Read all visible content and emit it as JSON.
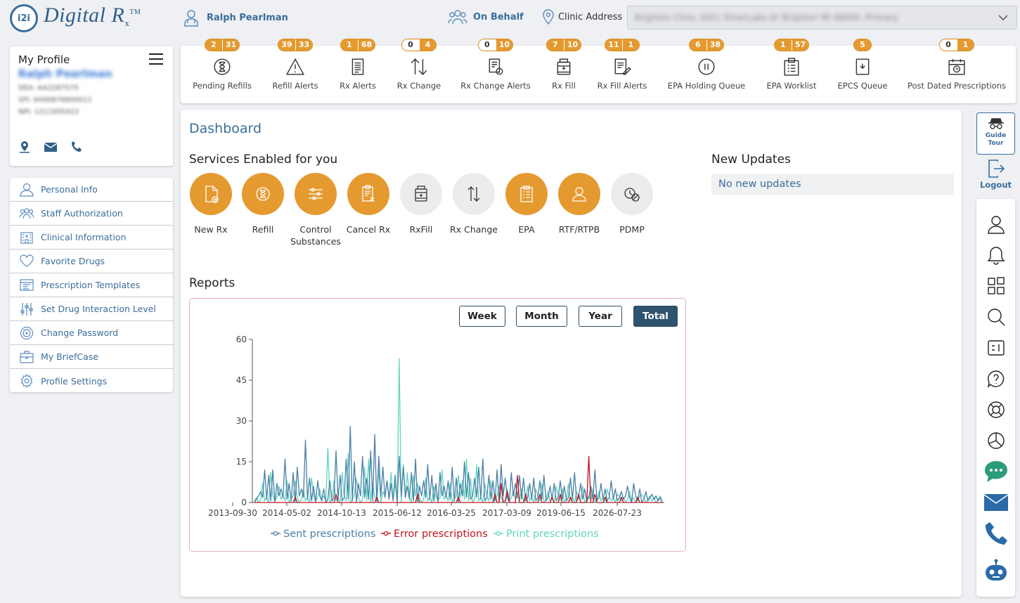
{
  "header": {
    "logo_mark": "i2i",
    "logo_text": "Digital R",
    "logo_sub": "x",
    "logo_tm": "TM",
    "user_name": "Ralph Pearlman",
    "on_behalf_label": "On Behalf",
    "clinic_label": "Clinic Address",
    "clinic_value": "Brighton Clinic 3451 SilverLake Dr Brighton MI 48000 -Primary"
  },
  "profile": {
    "title": "My Profile",
    "name": "Ralph Pearlman",
    "dea": "DEA: AA2287575",
    "spi": "SPI: 6490876800012",
    "npi": "NPI: 1211955422"
  },
  "menu": [
    {
      "label": "Personal Info",
      "icon": "user-icon"
    },
    {
      "label": "Staff Authorization",
      "icon": "staff-icon"
    },
    {
      "label": "Clinical Information",
      "icon": "hospital-icon"
    },
    {
      "label": "Favorite Drugs",
      "icon": "heart-icon"
    },
    {
      "label": "Prescription Templates",
      "icon": "template-icon"
    },
    {
      "label": "Set Drug Interaction Level",
      "icon": "sliders-icon"
    },
    {
      "label": "Change Password",
      "icon": "password-icon"
    },
    {
      "label": "My BriefCase",
      "icon": "briefcase-icon"
    },
    {
      "label": "Profile Settings",
      "icon": "settings-gear-icon"
    }
  ],
  "toolbar": [
    {
      "label": "Pending Refills",
      "badges": [
        "2",
        "31"
      ],
      "icon": "hourglass-icon"
    },
    {
      "label": "Refill Alerts",
      "badges": [
        "39",
        "33"
      ],
      "icon": "warning-icon"
    },
    {
      "label": "Rx Alerts",
      "badges": [
        "1",
        "68"
      ],
      "icon": "document-icon"
    },
    {
      "label": "Rx Change",
      "badges": [
        "0",
        "4"
      ],
      "icon": "swap-arrows-icon"
    },
    {
      "label": "Rx Change Alerts",
      "badges": [
        "0",
        "10"
      ],
      "icon": "document-alert-icon"
    },
    {
      "label": "Rx Fill",
      "badges": [
        "7",
        "10"
      ],
      "icon": "pill-bottle-icon"
    },
    {
      "label": "Rx Fill Alerts",
      "badges": [
        "11",
        "1"
      ],
      "icon": "edit-document-icon"
    },
    {
      "label": "EPA Holding Queue",
      "badges": [
        "6",
        "38"
      ],
      "icon": "pause-icon"
    },
    {
      "label": "EPA Worklist",
      "badges": [
        "1",
        "57"
      ],
      "icon": "clipboard-list-icon"
    },
    {
      "label": "EPCS Queue",
      "badges": [
        "5"
      ],
      "icon": "tablet-icon"
    },
    {
      "label": "Post Dated Prescriptions",
      "badges": [
        "0",
        "1"
      ],
      "icon": "calendar-clock-icon"
    }
  ],
  "dashboard": {
    "title": "Dashboard",
    "services_title": "Services Enabled for you",
    "services": [
      {
        "label": "New Rx",
        "style": "orange",
        "icon": "new-rx-icon"
      },
      {
        "label": "Refill",
        "style": "orange",
        "icon": "refill-icon"
      },
      {
        "label": "Control Substances",
        "style": "orange",
        "icon": "control-substances-icon"
      },
      {
        "label": "Cancel Rx",
        "style": "orange",
        "icon": "cancel-rx-icon"
      },
      {
        "label": "RxFill",
        "style": "gray",
        "icon": "rxfill-icon"
      },
      {
        "label": "Rx Change",
        "style": "gray",
        "icon": "rx-change-icon"
      },
      {
        "label": "EPA",
        "style": "orange",
        "icon": "epa-icon"
      },
      {
        "label": "RTF/RTPB",
        "style": "orange",
        "icon": "rtf-icon"
      },
      {
        "label": "PDMP",
        "style": "gray",
        "icon": "pdmp-icon"
      }
    ],
    "updates_title": "New Updates",
    "updates_text": "No new updates",
    "reports_title": "Reports",
    "report_buttons": [
      "Week",
      "Month",
      "Year",
      "Total"
    ],
    "active_button": "Total"
  },
  "rail": {
    "guide_tour": "Guide Tour",
    "logout": "Logout",
    "icons": [
      "profile-icon",
      "bell-icon",
      "apps-grid-icon",
      "search-icon",
      "document-list-icon",
      "help-icon",
      "support-lifebuoy-icon",
      "pie-chart-icon",
      "chat-icon",
      "mail-icon",
      "phone-icon",
      "chatbot-icon"
    ]
  },
  "colors": {
    "accent_orange": "#e59a2f",
    "brand_blue": "#3a6d9c",
    "sent": "#4a7fa8",
    "error": "#c0141c",
    "print": "#5fd6bc"
  },
  "chart_data": {
    "type": "line",
    "ylim": [
      0,
      60
    ],
    "yticks": [
      0,
      15,
      30,
      45,
      60
    ],
    "xticks": [
      "2013-09-30",
      "2014-05-02",
      "2014-10-13",
      "2015-06-12",
      "2016-03-25",
      "2017-03-09",
      "2019-06-15",
      "2026-07-23"
    ],
    "legend_position": "bottom",
    "series": [
      {
        "name": "Sent prescriptions",
        "color": "#4a7fa8",
        "spikes": [
          [
            3,
            4
          ],
          [
            5,
            12
          ],
          [
            7,
            10
          ],
          [
            9,
            12
          ],
          [
            11,
            7
          ],
          [
            13,
            5
          ],
          [
            15,
            16
          ],
          [
            17,
            7
          ],
          [
            19,
            11
          ],
          [
            21,
            13
          ],
          [
            23,
            5
          ],
          [
            25,
            23
          ],
          [
            27,
            9
          ],
          [
            29,
            6
          ],
          [
            31,
            8
          ],
          [
            34,
            5
          ],
          [
            37,
            8
          ],
          [
            40,
            19
          ],
          [
            42,
            10
          ],
          [
            45,
            16
          ],
          [
            47,
            28
          ],
          [
            49,
            15
          ],
          [
            51,
            7
          ],
          [
            53,
            17
          ],
          [
            55,
            9
          ],
          [
            57,
            19
          ],
          [
            59,
            25
          ],
          [
            61,
            17
          ],
          [
            63,
            13
          ],
          [
            65,
            8
          ],
          [
            67,
            7
          ],
          [
            69,
            10
          ],
          [
            71,
            17
          ],
          [
            73,
            13
          ],
          [
            75,
            6
          ],
          [
            77,
            11
          ],
          [
            79,
            16
          ],
          [
            81,
            6
          ],
          [
            83,
            8
          ],
          [
            85,
            14
          ],
          [
            87,
            10
          ],
          [
            89,
            7
          ],
          [
            91,
            11
          ],
          [
            93,
            6
          ],
          [
            95,
            8
          ],
          [
            97,
            13
          ],
          [
            99,
            9
          ],
          [
            101,
            7
          ],
          [
            103,
            15
          ],
          [
            105,
            11
          ],
          [
            108,
            9
          ],
          [
            110,
            13
          ],
          [
            112,
            16
          ],
          [
            115,
            10
          ],
          [
            117,
            8
          ],
          [
            119,
            12
          ],
          [
            121,
            14
          ],
          [
            123,
            9
          ],
          [
            126,
            11
          ],
          [
            128,
            7
          ],
          [
            130,
            10
          ],
          [
            132,
            9
          ],
          [
            135,
            7
          ],
          [
            137,
            9
          ],
          [
            140,
            8
          ],
          [
            142,
            10
          ],
          [
            145,
            6
          ],
          [
            147,
            7
          ],
          [
            150,
            8
          ],
          [
            152,
            6
          ],
          [
            155,
            9
          ],
          [
            157,
            11
          ],
          [
            160,
            7
          ],
          [
            162,
            5
          ],
          [
            165,
            6
          ],
          [
            167,
            12
          ],
          [
            170,
            7
          ],
          [
            172,
            5
          ],
          [
            175,
            8
          ],
          [
            177,
            5
          ],
          [
            180,
            4
          ],
          [
            183,
            6
          ],
          [
            186,
            7
          ],
          [
            189,
            5
          ],
          [
            192,
            4
          ],
          [
            195,
            3
          ]
        ]
      },
      {
        "name": "Error prescriptions",
        "color": "#c0141c",
        "spikes": [
          [
            20,
            2
          ],
          [
            40,
            3
          ],
          [
            60,
            2
          ],
          [
            80,
            3
          ],
          [
            100,
            2
          ],
          [
            118,
            3
          ],
          [
            121,
            7
          ],
          [
            124,
            4
          ],
          [
            129,
            10
          ],
          [
            133,
            3
          ],
          [
            140,
            3
          ],
          [
            146,
            2
          ],
          [
            150,
            3
          ],
          [
            155,
            2
          ],
          [
            159,
            3
          ],
          [
            164,
            17
          ],
          [
            167,
            3
          ],
          [
            172,
            2
          ],
          [
            180,
            2
          ],
          [
            188,
            2
          ]
        ]
      },
      {
        "name": "Print prescriptions",
        "color": "#5fd6bc",
        "spikes": [
          [
            4,
            7
          ],
          [
            8,
            11
          ],
          [
            12,
            6
          ],
          [
            16,
            8
          ],
          [
            20,
            8
          ],
          [
            24,
            5
          ],
          [
            28,
            9
          ],
          [
            32,
            5
          ],
          [
            36,
            20
          ],
          [
            39,
            8
          ],
          [
            43,
            11
          ],
          [
            46,
            18
          ],
          [
            50,
            9
          ],
          [
            54,
            13
          ],
          [
            56,
            16
          ],
          [
            58,
            7
          ],
          [
            61,
            12
          ],
          [
            63,
            4
          ],
          [
            65,
            8
          ],
          [
            67,
            11
          ],
          [
            69,
            7
          ],
          [
            71,
            53
          ],
          [
            73,
            14
          ],
          [
            75,
            11
          ],
          [
            78,
            10
          ],
          [
            80,
            7
          ],
          [
            84,
            9
          ],
          [
            88,
            6
          ],
          [
            92,
            12
          ],
          [
            96,
            7
          ],
          [
            100,
            10
          ],
          [
            102,
            8
          ],
          [
            104,
            16
          ],
          [
            106,
            9
          ],
          [
            109,
            14
          ],
          [
            113,
            7
          ],
          [
            116,
            8
          ],
          [
            120,
            6
          ],
          [
            124,
            5
          ],
          [
            127,
            4
          ],
          [
            131,
            5
          ],
          [
            134,
            6
          ],
          [
            138,
            5
          ],
          [
            141,
            7
          ],
          [
            144,
            4
          ],
          [
            148,
            6
          ],
          [
            151,
            5
          ],
          [
            154,
            7
          ],
          [
            158,
            4
          ],
          [
            161,
            6
          ],
          [
            166,
            5
          ],
          [
            169,
            4
          ],
          [
            173,
            5
          ],
          [
            178,
            3
          ],
          [
            184,
            4
          ],
          [
            190,
            3
          ]
        ]
      }
    ]
  }
}
